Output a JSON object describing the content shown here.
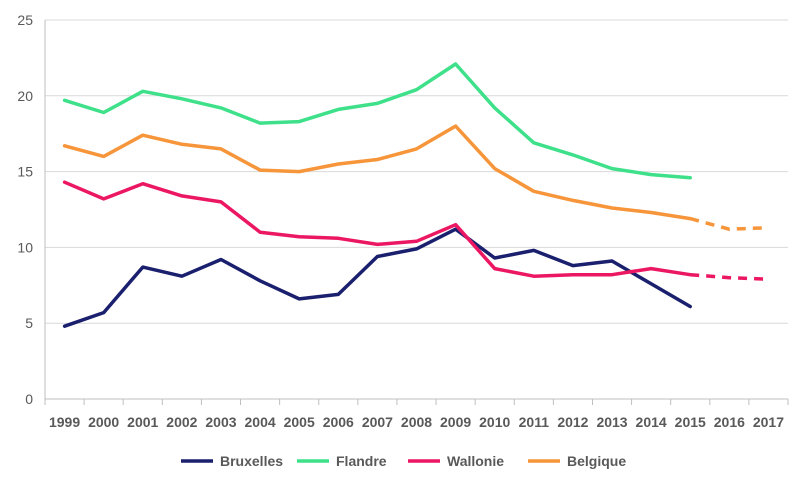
{
  "chart_data": {
    "type": "line",
    "categories": [
      "1999",
      "2000",
      "2001",
      "2002",
      "2003",
      "2004",
      "2005",
      "2006",
      "2007",
      "2008",
      "2009",
      "2010",
      "2011",
      "2012",
      "2013",
      "2014",
      "2015",
      "2016",
      "2017"
    ],
    "ylim": [
      0,
      25
    ],
    "yticks": [
      0,
      5,
      10,
      15,
      20,
      25
    ],
    "grid": "horizontal",
    "legend_position": "bottom",
    "series": [
      {
        "name": "Bruxelles",
        "color": "#1a1f6e",
        "values": [
          4.8,
          5.7,
          8.7,
          8.1,
          9.2,
          7.8,
          6.6,
          6.9,
          9.4,
          9.9,
          11.2,
          9.3,
          9.8,
          8.8,
          9.1,
          7.6,
          6.1,
          null,
          null
        ],
        "forecast": [
          null,
          null,
          null,
          null,
          null,
          null,
          null,
          null,
          null,
          null,
          null,
          null,
          null,
          null,
          null,
          null,
          null,
          null,
          null
        ]
      },
      {
        "name": "Flandre",
        "color": "#3ee08a",
        "values": [
          19.7,
          18.9,
          20.3,
          19.8,
          19.2,
          18.2,
          18.3,
          19.1,
          19.5,
          20.4,
          22.1,
          19.2,
          16.9,
          16.1,
          15.2,
          14.8,
          14.6,
          null,
          null
        ],
        "forecast": [
          null,
          null,
          null,
          null,
          null,
          null,
          null,
          null,
          null,
          null,
          null,
          null,
          null,
          null,
          null,
          null,
          null,
          null,
          null
        ]
      },
      {
        "name": "Wallonie",
        "color": "#ec1763",
        "values": [
          14.3,
          13.2,
          14.2,
          13.4,
          13.0,
          11.0,
          10.7,
          10.6,
          10.2,
          10.4,
          11.5,
          8.6,
          8.1,
          8.2,
          8.2,
          8.6,
          8.2,
          null,
          null
        ],
        "forecast": [
          null,
          null,
          null,
          null,
          null,
          null,
          null,
          null,
          null,
          null,
          null,
          null,
          null,
          null,
          null,
          null,
          8.2,
          8.0,
          7.9
        ]
      },
      {
        "name": "Belgique",
        "color": "#f7953a",
        "values": [
          16.7,
          16.0,
          17.4,
          16.8,
          16.5,
          15.1,
          15.0,
          15.5,
          15.8,
          16.5,
          18.0,
          15.2,
          13.7,
          13.1,
          12.6,
          12.3,
          11.9,
          null,
          null
        ],
        "forecast": [
          null,
          null,
          null,
          null,
          null,
          null,
          null,
          null,
          null,
          null,
          null,
          null,
          null,
          null,
          null,
          null,
          11.9,
          11.2,
          11.3
        ]
      }
    ]
  }
}
